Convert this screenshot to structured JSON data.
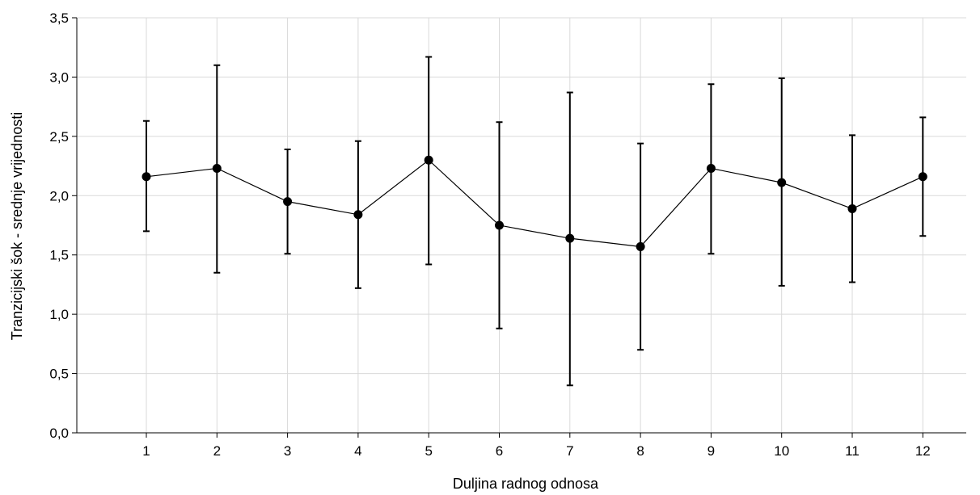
{
  "chart_data": {
    "type": "line",
    "xlabel": "Duljina radnog odnosa",
    "ylabel": "Tranzicijski šok - srednje vrijednosti",
    "categories": [
      "1",
      "2",
      "3",
      "4",
      "5",
      "6",
      "7",
      "8",
      "9",
      "10",
      "11",
      "12"
    ],
    "ylim": [
      0,
      3.5
    ],
    "yticks": [
      "0,0",
      "0,5",
      "1,0",
      "1,5",
      "2,0",
      "2,5",
      "3,0",
      "3,5"
    ],
    "grid": true,
    "series": [
      {
        "values": [
          2.16,
          2.23,
          1.95,
          1.84,
          2.3,
          1.75,
          1.64,
          1.57,
          2.23,
          2.11,
          1.89,
          2.16
        ],
        "error_low": [
          1.7,
          1.35,
          1.51,
          1.22,
          1.42,
          0.88,
          0.4,
          0.7,
          1.51,
          1.24,
          1.27,
          1.66
        ],
        "error_high": [
          2.63,
          3.1,
          2.39,
          2.46,
          3.17,
          2.62,
          2.87,
          2.44,
          2.94,
          2.99,
          2.51,
          2.66
        ]
      }
    ]
  }
}
